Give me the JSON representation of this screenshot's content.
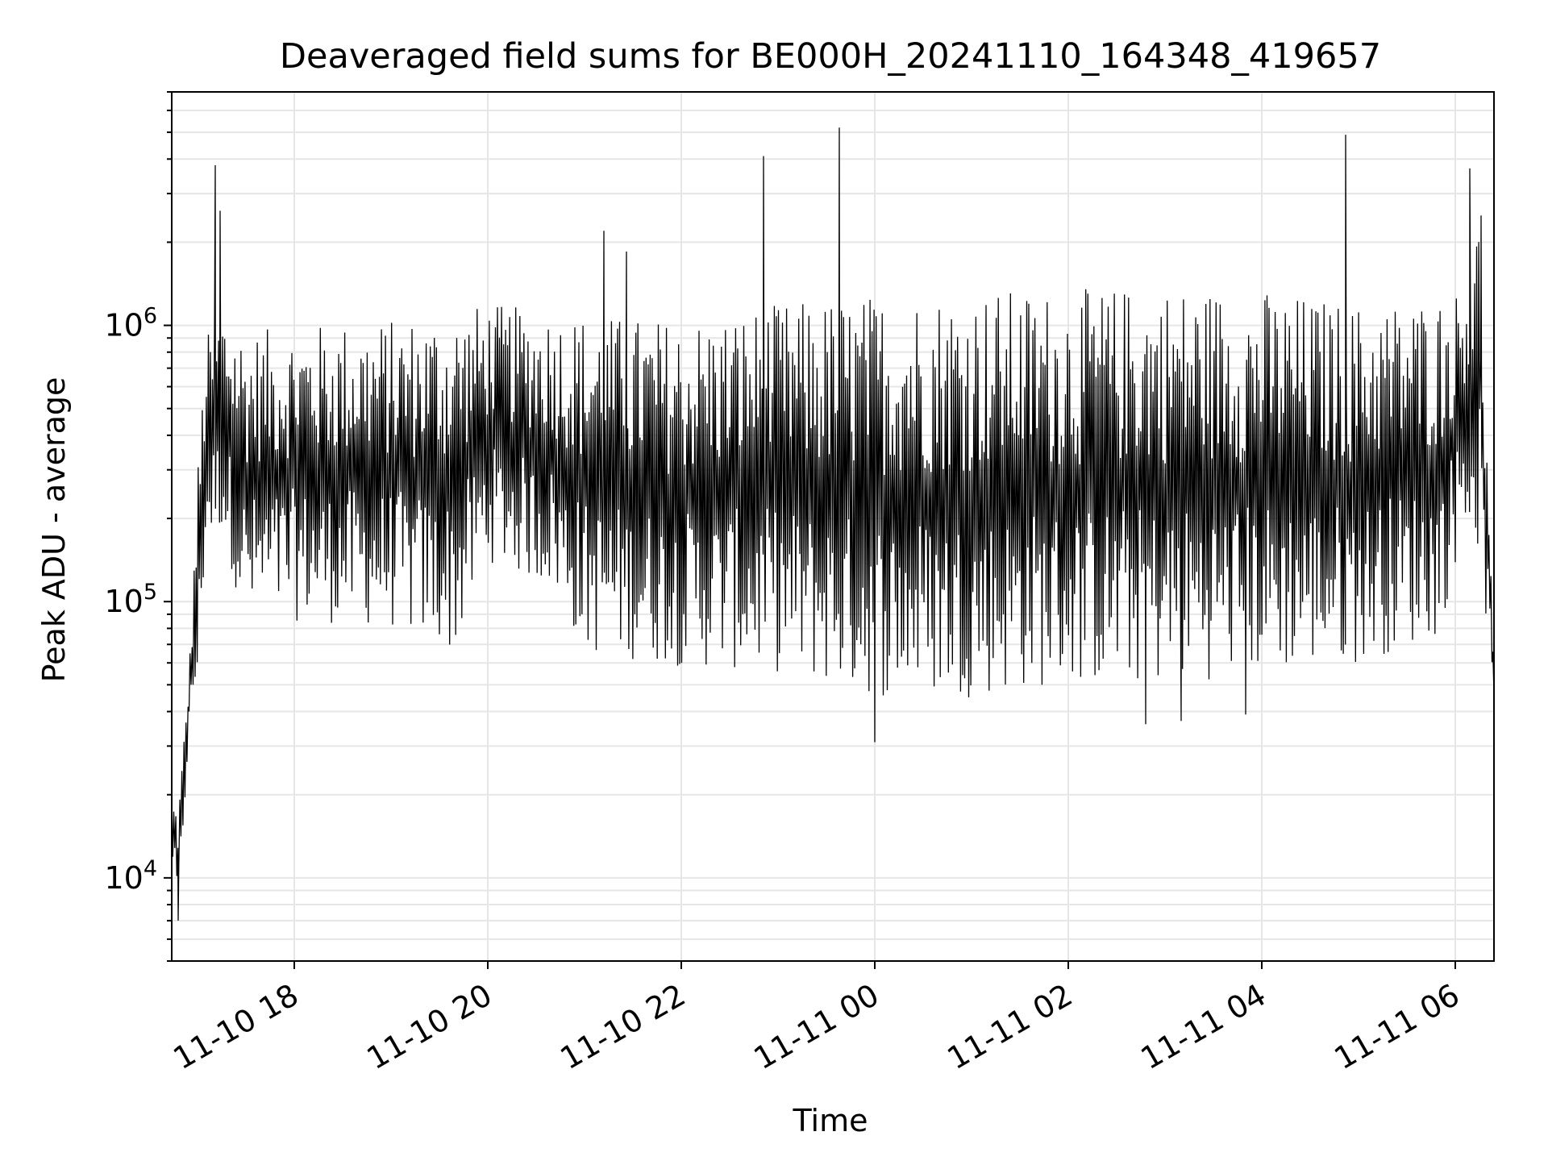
{
  "chart_data": {
    "type": "line",
    "title": "Deaveraged field sums for BE000H_20241110_164348_419657",
    "xlabel": "Time",
    "ylabel": "Peak ADU - average",
    "x_axis": {
      "kind": "datetime",
      "range": [
        "2024-11-10 16:44",
        "2024-11-11 06:24"
      ],
      "ticks": [
        {
          "value": "2024-11-10 18:00",
          "label": "11-10 18"
        },
        {
          "value": "2024-11-10 20:00",
          "label": "11-10 20"
        },
        {
          "value": "2024-11-10 22:00",
          "label": "11-10 22"
        },
        {
          "value": "2024-11-11 00:00",
          "label": "11-11 00"
        },
        {
          "value": "2024-11-11 02:00",
          "label": "11-11 02"
        },
        {
          "value": "2024-11-11 04:00",
          "label": "11-11 04"
        },
        {
          "value": "2024-11-11 06:00",
          "label": "11-11 06"
        }
      ]
    },
    "y_axis": {
      "scale": "log",
      "range": [
        5000,
        7000000
      ],
      "ticks": [
        {
          "value": 10000,
          "base": "10",
          "exp": "4"
        },
        {
          "value": 100000,
          "base": "10",
          "exp": "5"
        },
        {
          "value": 1000000,
          "base": "10",
          "exp": "6"
        }
      ]
    },
    "grid": true,
    "line_color": "#000000",
    "grid_color": "#e6e6e6",
    "series": [
      {
        "envelope_lower": [
          {
            "x": "2024-11-10 16:44",
            "y": 12000
          },
          {
            "x": "2024-11-10 16:48",
            "y": 7000
          },
          {
            "x": "2024-11-10 16:55",
            "y": 35000
          },
          {
            "x": "2024-11-10 17:00",
            "y": 45000
          },
          {
            "x": "2024-11-10 17:05",
            "y": 150000
          },
          {
            "x": "2024-11-10 17:15",
            "y": 180000
          },
          {
            "x": "2024-11-10 17:30",
            "y": 80000
          },
          {
            "x": "2024-11-10 18:00",
            "y": 85000
          },
          {
            "x": "2024-11-10 19:00",
            "y": 80000
          },
          {
            "x": "2024-11-10 19:40",
            "y": 65000
          },
          {
            "x": "2024-11-10 20:00",
            "y": 140000
          },
          {
            "x": "2024-11-10 20:40",
            "y": 110000
          },
          {
            "x": "2024-11-10 21:00",
            "y": 65000
          },
          {
            "x": "2024-11-10 22:00",
            "y": 58000
          },
          {
            "x": "2024-11-10 23:00",
            "y": 55000
          },
          {
            "x": "2024-11-11 00:00",
            "y": 45000
          },
          {
            "x": "2024-11-11 01:00",
            "y": 45000
          },
          {
            "x": "2024-11-11 02:00",
            "y": 50000
          },
          {
            "x": "2024-11-11 03:00",
            "y": 50000
          },
          {
            "x": "2024-11-11 04:00",
            "y": 55000
          },
          {
            "x": "2024-11-11 05:00",
            "y": 60000
          },
          {
            "x": "2024-11-11 05:50",
            "y": 75000
          },
          {
            "x": "2024-11-11 06:05",
            "y": 180000
          },
          {
            "x": "2024-11-11 06:15",
            "y": 150000
          },
          {
            "x": "2024-11-11 06:24",
            "y": 45000
          }
        ],
        "envelope_upper": [
          {
            "x": "2024-11-10 16:44",
            "y": 20000
          },
          {
            "x": "2024-11-10 16:48",
            "y": 18000
          },
          {
            "x": "2024-11-10 16:55",
            "y": 60000
          },
          {
            "x": "2024-11-10 17:00",
            "y": 300000
          },
          {
            "x": "2024-11-10 17:05",
            "y": 900000
          },
          {
            "x": "2024-11-10 17:15",
            "y": 1200000
          },
          {
            "x": "2024-11-10 17:30",
            "y": 950000
          },
          {
            "x": "2024-11-10 18:00",
            "y": 1000000
          },
          {
            "x": "2024-11-10 19:00",
            "y": 1050000
          },
          {
            "x": "2024-11-10 20:00",
            "y": 1200000
          },
          {
            "x": "2024-11-10 21:00",
            "y": 1100000
          },
          {
            "x": "2024-11-10 22:00",
            "y": 1050000
          },
          {
            "x": "2024-11-10 23:00",
            "y": 1200000
          },
          {
            "x": "2024-11-11 00:00",
            "y": 1300000
          },
          {
            "x": "2024-11-11 01:00",
            "y": 1350000
          },
          {
            "x": "2024-11-11 02:00",
            "y": 1350000
          },
          {
            "x": "2024-11-11 03:00",
            "y": 1400000
          },
          {
            "x": "2024-11-11 04:00",
            "y": 1350000
          },
          {
            "x": "2024-11-11 05:00",
            "y": 1200000
          },
          {
            "x": "2024-11-11 06:00",
            "y": 1300000
          },
          {
            "x": "2024-11-11 06:15",
            "y": 2500000
          },
          {
            "x": "2024-11-11 06:24",
            "y": 60000
          }
        ],
        "spikes": [
          {
            "x": "2024-11-10 17:11",
            "y": 3800000
          },
          {
            "x": "2024-11-10 17:14",
            "y": 2600000
          },
          {
            "x": "2024-11-10 21:12",
            "y": 2200000
          },
          {
            "x": "2024-11-10 21:26",
            "y": 1850000
          },
          {
            "x": "2024-11-10 22:51",
            "y": 4100000
          },
          {
            "x": "2024-11-10 23:38",
            "y": 5200000
          },
          {
            "x": "2024-11-11 04:52",
            "y": 4900000
          },
          {
            "x": "2024-11-11 06:09",
            "y": 3700000
          },
          {
            "x": "2024-11-11 06:16",
            "y": 2500000
          }
        ],
        "dips": [
          {
            "x": "2024-11-10 16:48",
            "y": 7000
          },
          {
            "x": "2024-11-11 00:00",
            "y": 31000
          },
          {
            "x": "2024-11-11 02:48",
            "y": 36000
          },
          {
            "x": "2024-11-11 03:10",
            "y": 37000
          },
          {
            "x": "2024-11-11 03:50",
            "y": 39000
          }
        ]
      }
    ]
  }
}
